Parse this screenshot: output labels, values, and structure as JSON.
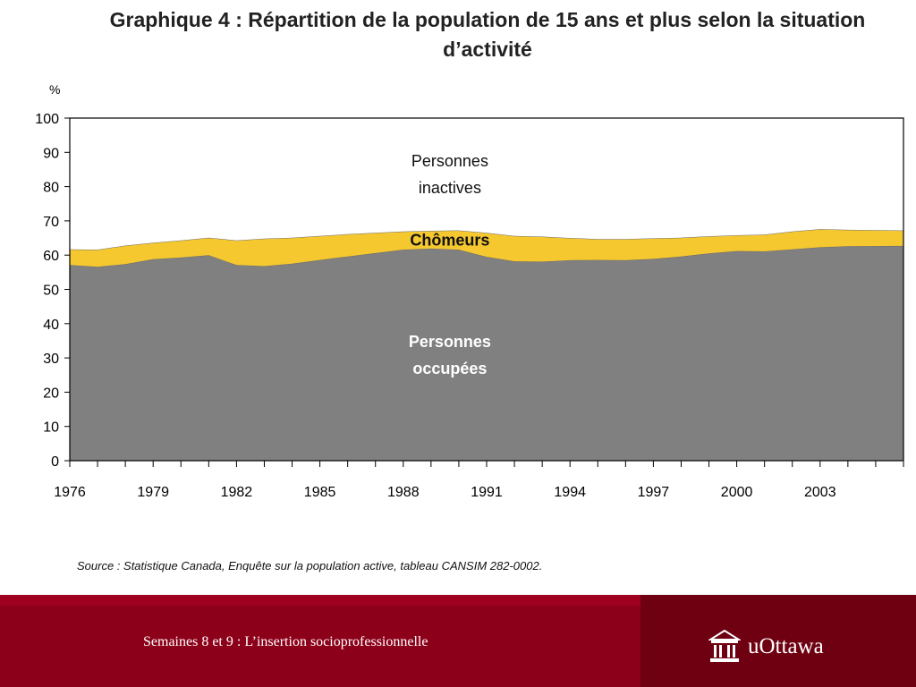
{
  "slide": {
    "title": "Graphique 4 : Répartition de la population de 15 ans et plus selon la situation d’activité",
    "source": "Source : Statistique Canada, Enquête sur la population active, tableau CANSIM 282-0002.",
    "footer_caption": "Semaines 8 et 9 : L’insertion socioprofessionnelle",
    "logo_text": "uOttawa"
  },
  "chart_data": {
    "type": "area",
    "stacked": true,
    "y_unit": "%",
    "ylim": [
      0,
      100
    ],
    "yticks": [
      0,
      10,
      20,
      30,
      40,
      50,
      60,
      70,
      80,
      90,
      100
    ],
    "x": [
      1976,
      1977,
      1978,
      1979,
      1980,
      1981,
      1982,
      1983,
      1984,
      1985,
      1986,
      1987,
      1988,
      1989,
      1990,
      1991,
      1992,
      1993,
      1994,
      1995,
      1996,
      1997,
      1998,
      1999,
      2000,
      2001,
      2002,
      2003,
      2004,
      2005
    ],
    "xtick_labels": [
      "1976",
      "1979",
      "1982",
      "1985",
      "1988",
      "1991",
      "1994",
      "1997",
      "2000",
      "2003"
    ],
    "series": [
      {
        "name": "Personnes occupées",
        "label_lines": [
          "Personnes",
          "occupées"
        ],
        "color": "#808080",
        "values": [
          57.1,
          56.6,
          57.4,
          58.8,
          59.3,
          60.0,
          57.1,
          56.8,
          57.5,
          58.6,
          59.6,
          60.6,
          61.6,
          61.9,
          61.6,
          59.5,
          58.2,
          58.1,
          58.5,
          58.6,
          58.5,
          58.9,
          59.6,
          60.5,
          61.2,
          61.1,
          61.7,
          62.3,
          62.6,
          62.7
        ]
      },
      {
        "name": "Chômeurs",
        "label_lines": [
          "Chômeurs"
        ],
        "color": "#f5c830",
        "values": [
          4.6,
          5.0,
          5.4,
          4.8,
          5.0,
          5.1,
          7.2,
          8.0,
          7.6,
          7.0,
          6.5,
          5.9,
          5.3,
          5.2,
          5.6,
          7.0,
          7.4,
          7.3,
          6.5,
          6.1,
          6.2,
          6.0,
          5.5,
          5.0,
          4.6,
          4.9,
          5.2,
          5.3,
          4.8,
          4.5
        ]
      },
      {
        "name": "Personnes inactives",
        "label_lines": [
          "Personnes",
          "inactives"
        ],
        "color": "#ffffff",
        "values": [
          38.3,
          38.4,
          37.2,
          36.4,
          35.7,
          34.9,
          35.7,
          35.2,
          34.9,
          34.4,
          33.9,
          33.5,
          33.1,
          32.9,
          32.8,
          33.5,
          34.4,
          34.6,
          35.0,
          35.3,
          35.3,
          35.1,
          34.9,
          34.5,
          34.2,
          34.0,
          33.1,
          32.4,
          32.6,
          32.8
        ]
      }
    ]
  }
}
